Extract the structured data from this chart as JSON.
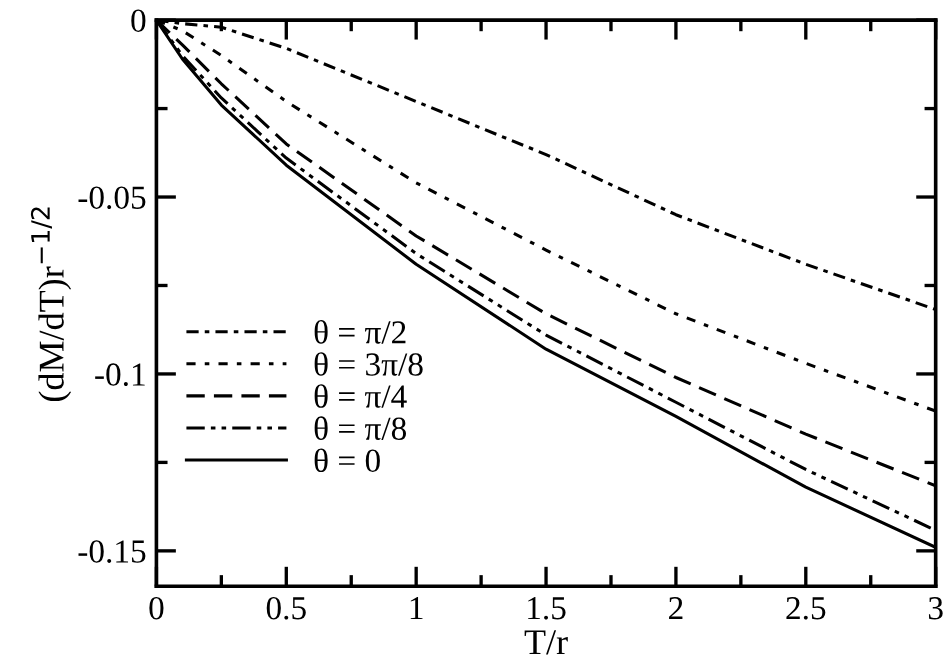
{
  "chart_data": {
    "type": "line",
    "xlabel": "T/r",
    "ylabel": "(dM/dT)r$^{−1/2}$",
    "xlim": [
      0,
      3
    ],
    "ylim": [
      -0.16,
      0
    ],
    "xticks": [
      0,
      {
        "value": 0.25,
        "label": null
      },
      0.5,
      {
        "value": 0.75,
        "label": null
      },
      1,
      {
        "value": 1.25,
        "label": null
      },
      1.5,
      {
        "value": 1.75,
        "label": null
      },
      2,
      {
        "value": 2.25,
        "label": null
      },
      2.5,
      {
        "value": 2.75,
        "label": null
      },
      3
    ],
    "yticks": [
      {
        "value": -0.15,
        "label": "-0.15"
      },
      {
        "value": -0.125,
        "label": null
      },
      {
        "value": -0.1,
        "label": "-0.1"
      },
      {
        "value": -0.075,
        "label": null
      },
      {
        "value": -0.05,
        "label": "-0.05"
      },
      {
        "value": -0.025,
        "label": null
      },
      0
    ],
    "x": [
      0,
      0.1,
      0.25,
      0.5,
      1,
      1.5,
      2,
      2.5,
      3
    ],
    "grid": false,
    "legend": "left",
    "marker": "none",
    "series": [
      {
        "name": "θ = π/2",
        "color": "#000000",
        "line_style": "dashdot",
        "values": [
          0,
          -0.001,
          -0.002,
          -0.008,
          -0.023,
          -0.038,
          -0.055,
          -0.069,
          -0.0818
        ]
      },
      {
        "name": "θ = 3π/8",
        "color": "#000000",
        "line_style": "dashdot",
        "values": [
          0,
          -0.003,
          -0.01,
          -0.023,
          -0.046,
          -0.065,
          -0.083,
          -0.097,
          -0.1105
        ]
      },
      {
        "name": "θ = π/4",
        "color": "#000000",
        "line_style": "dashed",
        "values": [
          0,
          -0.007,
          -0.018,
          -0.035,
          -0.061,
          -0.083,
          -0.101,
          -0.117,
          -0.1316
        ]
      },
      {
        "name": "θ = π/8",
        "color": "#000000",
        "line_style": "dashdotdot",
        "values": [
          0,
          -0.01,
          -0.022,
          -0.039,
          -0.066,
          -0.089,
          -0.108,
          -0.127,
          -0.1442
        ]
      },
      {
        "name": "θ = 0",
        "color": "#000000",
        "line_style": "solid",
        "values": [
          0,
          -0.011,
          -0.024,
          -0.041,
          -0.069,
          -0.093,
          -0.112,
          -0.132,
          -0.149
        ]
      }
    ]
  }
}
